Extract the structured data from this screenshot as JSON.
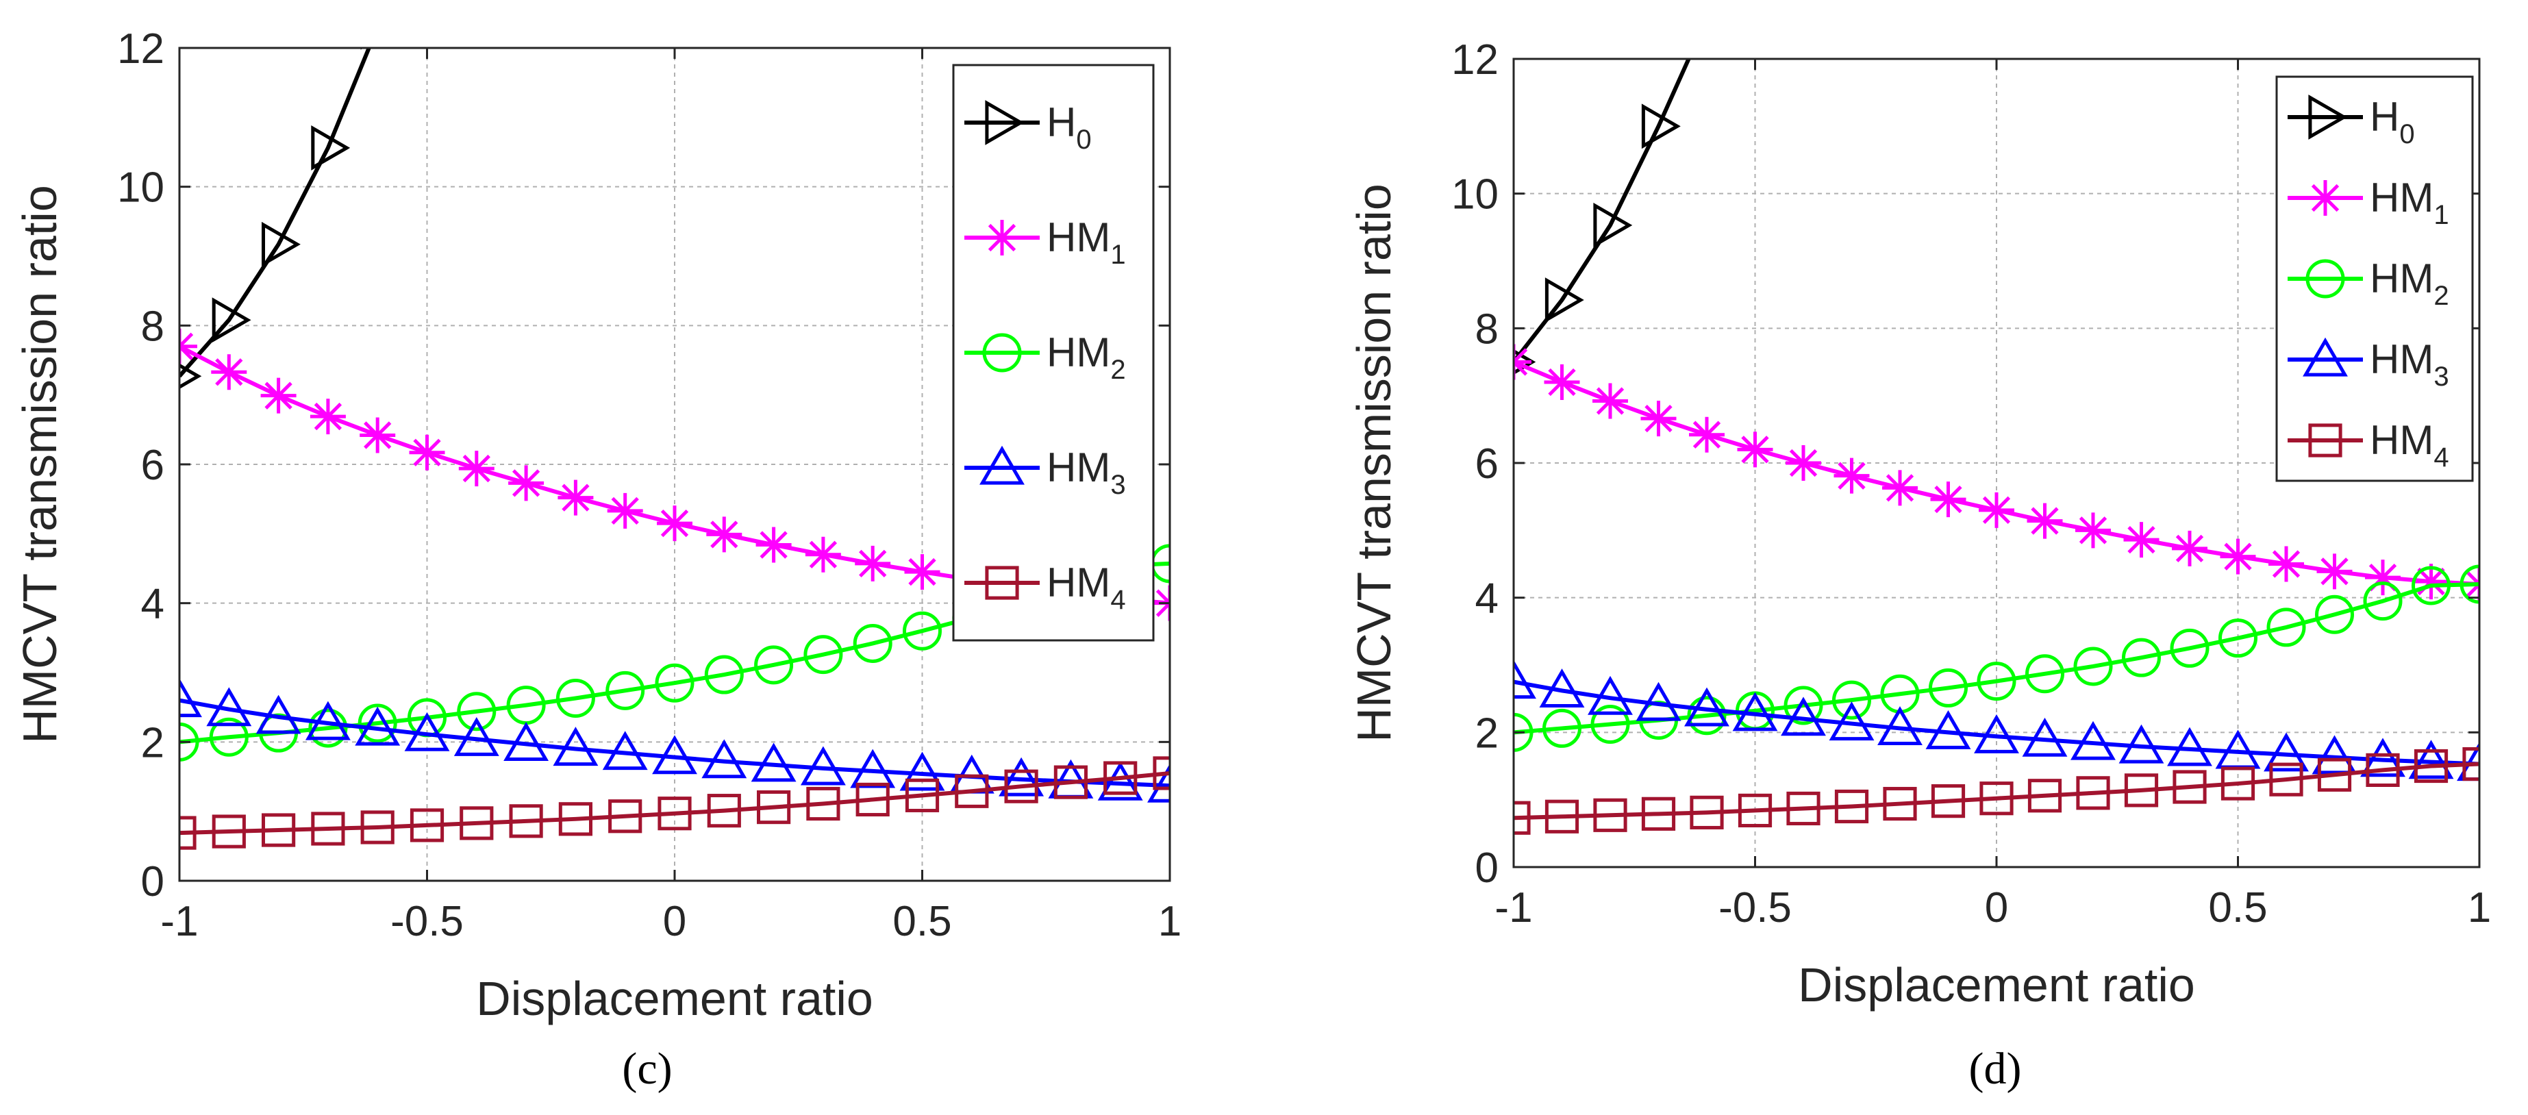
{
  "chart_data": [
    {
      "type": "line",
      "panel_label": "(c)",
      "xlabel": "Displacement ratio",
      "ylabel": "HMCVT transmission ratio",
      "xlim": [
        -1,
        1
      ],
      "ylim": [
        0,
        12
      ],
      "xticks": [
        "-1",
        "-0.5",
        "0",
        "0.5",
        "1"
      ],
      "yticks": [
        "0",
        "2",
        "4",
        "6",
        "8",
        "10",
        "12"
      ],
      "grid": true,
      "legend_position": "top-right",
      "series": [
        {
          "name": "H0",
          "base": "H",
          "sub": "0",
          "color": "#000000",
          "marker": "triangle-right",
          "x": [
            -1,
            -0.9,
            -0.8,
            -0.7,
            -0.6
          ],
          "y": [
            7.27,
            8.08,
            9.17,
            10.56,
            12.3
          ]
        },
        {
          "name": "HM1",
          "base": "HM",
          "sub": "1",
          "color": "#ff00ff",
          "marker": "star",
          "x": [
            -1,
            -0.9,
            -0.8,
            -0.7,
            -0.6,
            -0.5,
            -0.4,
            -0.3,
            -0.2,
            -0.1,
            0,
            0.1,
            0.2,
            0.3,
            0.4,
            0.5,
            0.6,
            0.7,
            0.8,
            0.9,
            1
          ],
          "y": [
            7.7,
            7.33,
            6.99,
            6.69,
            6.42,
            6.17,
            5.94,
            5.73,
            5.52,
            5.33,
            5.15,
            4.99,
            4.84,
            4.7,
            4.57,
            4.45,
            4.34,
            4.23,
            4.13,
            4.06,
            4.0
          ]
        },
        {
          "name": "HM2",
          "base": "HM",
          "sub": "2",
          "color": "#00ff00",
          "marker": "circle",
          "x": [
            -1,
            -0.9,
            -0.8,
            -0.7,
            -0.6,
            -0.5,
            -0.4,
            -0.3,
            -0.2,
            -0.1,
            0,
            0.1,
            0.2,
            0.3,
            0.4,
            0.5,
            0.6,
            0.7,
            0.8,
            0.9,
            1
          ],
          "y": [
            2.0,
            2.07,
            2.13,
            2.2,
            2.27,
            2.35,
            2.44,
            2.53,
            2.63,
            2.74,
            2.85,
            2.97,
            3.11,
            3.26,
            3.42,
            3.6,
            3.79,
            4.01,
            4.26,
            4.54,
            4.57
          ]
        },
        {
          "name": "HM3",
          "base": "HM",
          "sub": "3",
          "color": "#0000ff",
          "marker": "triangle-up",
          "x": [
            -1,
            -0.9,
            -0.8,
            -0.7,
            -0.6,
            -0.5,
            -0.4,
            -0.3,
            -0.2,
            -0.1,
            0,
            0.1,
            0.2,
            0.3,
            0.4,
            0.5,
            0.6,
            0.7,
            0.8,
            0.9,
            1
          ],
          "y": [
            2.6,
            2.47,
            2.36,
            2.27,
            2.19,
            2.11,
            2.04,
            1.97,
            1.9,
            1.84,
            1.78,
            1.72,
            1.67,
            1.62,
            1.58,
            1.54,
            1.5,
            1.46,
            1.43,
            1.4,
            1.37
          ]
        },
        {
          "name": "HM4",
          "base": "HM",
          "sub": "4",
          "color": "#a2142f",
          "marker": "square",
          "x": [
            -1,
            -0.9,
            -0.8,
            -0.7,
            -0.6,
            -0.5,
            -0.4,
            -0.3,
            -0.2,
            -0.1,
            0,
            0.1,
            0.2,
            0.3,
            0.4,
            0.5,
            0.6,
            0.7,
            0.8,
            0.9,
            1
          ],
          "y": [
            0.69,
            0.71,
            0.73,
            0.75,
            0.77,
            0.8,
            0.83,
            0.86,
            0.89,
            0.93,
            0.97,
            1.01,
            1.06,
            1.11,
            1.17,
            1.23,
            1.29,
            1.36,
            1.42,
            1.48,
            1.55
          ]
        }
      ]
    },
    {
      "type": "line",
      "panel_label": "(d)",
      "xlabel": "Displacement ratio",
      "ylabel": "HMCVT transmission ratio",
      "xlim": [
        -1,
        1
      ],
      "ylim": [
        0,
        12
      ],
      "xticks": [
        "-1",
        "-0.5",
        "0",
        "0.5",
        "1"
      ],
      "yticks": [
        "0",
        "2",
        "4",
        "6",
        "8",
        "10",
        "12"
      ],
      "grid": true,
      "legend_position": "top-right",
      "series": [
        {
          "name": "H0",
          "base": "H",
          "sub": "0",
          "color": "#000000",
          "marker": "triangle-right",
          "x": [
            -1,
            -0.9,
            -0.8,
            -0.7,
            -0.6
          ],
          "y": [
            7.5,
            8.42,
            9.53,
            11.0,
            12.6
          ]
        },
        {
          "name": "HM1",
          "base": "HM",
          "sub": "1",
          "color": "#ff00ff",
          "marker": "star",
          "x": [
            -1,
            -0.9,
            -0.8,
            -0.7,
            -0.6,
            -0.5,
            -0.4,
            -0.3,
            -0.2,
            -0.1,
            0,
            0.1,
            0.2,
            0.3,
            0.4,
            0.5,
            0.6,
            0.7,
            0.8,
            0.9,
            1
          ],
          "y": [
            7.5,
            7.2,
            6.92,
            6.66,
            6.42,
            6.2,
            6.0,
            5.81,
            5.63,
            5.46,
            5.3,
            5.14,
            5.0,
            4.86,
            4.73,
            4.61,
            4.5,
            4.39,
            4.3,
            4.24,
            4.2
          ]
        },
        {
          "name": "HM2",
          "base": "HM",
          "sub": "2",
          "color": "#00ff00",
          "marker": "circle",
          "x": [
            -1,
            -0.9,
            -0.8,
            -0.7,
            -0.6,
            -0.5,
            -0.4,
            -0.3,
            -0.2,
            -0.1,
            0,
            0.1,
            0.2,
            0.3,
            0.4,
            0.5,
            0.6,
            0.7,
            0.8,
            0.9,
            1
          ],
          "y": [
            2.0,
            2.06,
            2.12,
            2.18,
            2.25,
            2.32,
            2.4,
            2.48,
            2.57,
            2.66,
            2.76,
            2.87,
            2.98,
            3.11,
            3.25,
            3.4,
            3.56,
            3.75,
            3.95,
            4.18,
            4.2
          ]
        },
        {
          "name": "HM3",
          "base": "HM",
          "sub": "3",
          "color": "#0000ff",
          "marker": "triangle-up",
          "x": [
            -1,
            -0.9,
            -0.8,
            -0.7,
            -0.6,
            -0.5,
            -0.4,
            -0.3,
            -0.2,
            -0.1,
            0,
            0.1,
            0.2,
            0.3,
            0.4,
            0.5,
            0.6,
            0.7,
            0.8,
            0.9,
            1
          ],
          "y": [
            2.75,
            2.62,
            2.51,
            2.42,
            2.34,
            2.27,
            2.2,
            2.13,
            2.06,
            2.0,
            1.94,
            1.89,
            1.84,
            1.79,
            1.75,
            1.71,
            1.67,
            1.63,
            1.59,
            1.56,
            1.53
          ]
        },
        {
          "name": "HM4",
          "base": "HM",
          "sub": "4",
          "color": "#a2142f",
          "marker": "square",
          "x": [
            -1,
            -0.9,
            -0.8,
            -0.7,
            -0.6,
            -0.5,
            -0.4,
            -0.3,
            -0.2,
            -0.1,
            0,
            0.1,
            0.2,
            0.3,
            0.4,
            0.5,
            0.6,
            0.7,
            0.8,
            0.9,
            1
          ],
          "y": [
            0.73,
            0.75,
            0.77,
            0.79,
            0.81,
            0.84,
            0.87,
            0.9,
            0.94,
            0.98,
            1.02,
            1.06,
            1.1,
            1.14,
            1.19,
            1.24,
            1.3,
            1.37,
            1.44,
            1.5,
            1.53
          ]
        }
      ]
    }
  ]
}
